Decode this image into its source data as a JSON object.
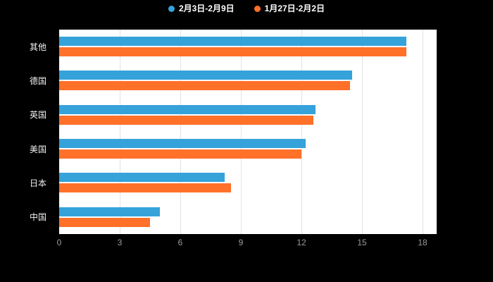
{
  "legend": {
    "items": [
      {
        "label": "2月3日-2月9日",
        "color": "#36a2da"
      },
      {
        "label": "1月27日-2月2日",
        "color": "#ff7029"
      }
    ]
  },
  "chart_data": {
    "type": "bar",
    "orientation": "horizontal",
    "title": "",
    "xlabel": "",
    "ylabel": "",
    "categories": [
      "其他",
      "德国",
      "英国",
      "美国",
      "日本",
      "中国"
    ],
    "series": [
      {
        "name": "2月3日-2月9日",
        "color": "#36a2da",
        "values": [
          17.2,
          14.5,
          12.7,
          12.2,
          8.2,
          5.0
        ]
      },
      {
        "name": "1月27日-2月2日",
        "color": "#ff7029",
        "values": [
          17.2,
          14.4,
          12.6,
          12.0,
          8.5,
          4.5
        ]
      }
    ],
    "xlim": [
      0,
      18
    ],
    "xticks": [
      0,
      3,
      6,
      9,
      12,
      15,
      18
    ],
    "grid": true,
    "legend_position": "top",
    "background": "#000000",
    "plot_background": "#ffffff",
    "category_label_color": "#f2f2f2",
    "tick_label_color": "#9b9b9b"
  }
}
